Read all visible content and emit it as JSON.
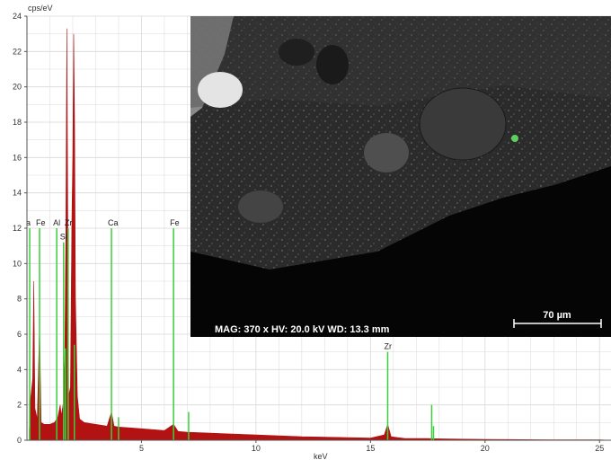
{
  "chart_data": {
    "type": "area",
    "ylabel": "cps/eV",
    "xlabel": "keV",
    "xlim": [
      0,
      25.5
    ],
    "ylim": [
      0,
      24
    ],
    "x_ticks": [
      5,
      10,
      15,
      20,
      25
    ],
    "y_ticks": [
      0,
      2,
      4,
      6,
      8,
      10,
      12,
      14,
      16,
      18,
      20,
      22,
      24
    ],
    "grid": true,
    "colors": {
      "spectrum": "#b31212",
      "markers": "#3ccf3c",
      "grid": "#d9d9d9"
    },
    "series": [
      {
        "points": [
          [
            0.1,
            0.5
          ],
          [
            0.15,
            2.2
          ],
          [
            0.25,
            3.5
          ],
          [
            0.3,
            9.0
          ],
          [
            0.35,
            1.8
          ],
          [
            0.45,
            1.2
          ],
          [
            0.55,
            6.5
          ],
          [
            0.62,
            1.0
          ],
          [
            0.75,
            0.9
          ],
          [
            1.0,
            0.9
          ],
          [
            1.2,
            1.0
          ],
          [
            1.35,
            1.3
          ],
          [
            1.45,
            2.0
          ],
          [
            1.5,
            1.4
          ],
          [
            1.6,
            2.2
          ],
          [
            1.65,
            4.5
          ],
          [
            1.7,
            12.0
          ],
          [
            1.74,
            23.3
          ],
          [
            1.78,
            13.0
          ],
          [
            1.82,
            2.5
          ],
          [
            1.9,
            3.0
          ],
          [
            1.96,
            12.5
          ],
          [
            2.0,
            16.0
          ],
          [
            2.04,
            23.0
          ],
          [
            2.08,
            18.0
          ],
          [
            2.12,
            8.0
          ],
          [
            2.2,
            2.5
          ],
          [
            2.3,
            1.2
          ],
          [
            2.5,
            1.0
          ],
          [
            3.0,
            0.9
          ],
          [
            3.5,
            0.8
          ],
          [
            3.69,
            1.6
          ],
          [
            3.8,
            0.8
          ],
          [
            4.0,
            0.75
          ],
          [
            4.5,
            0.7
          ],
          [
            5.0,
            0.65
          ],
          [
            6.0,
            0.55
          ],
          [
            6.4,
            0.9
          ],
          [
            6.6,
            0.5
          ],
          [
            7.0,
            0.45
          ],
          [
            8.0,
            0.4
          ],
          [
            9.0,
            0.35
          ],
          [
            10.0,
            0.3
          ],
          [
            11.0,
            0.25
          ],
          [
            12.0,
            0.2
          ],
          [
            13.0,
            0.18
          ],
          [
            14.0,
            0.15
          ],
          [
            15.0,
            0.12
          ],
          [
            15.6,
            0.3
          ],
          [
            15.75,
            0.9
          ],
          [
            15.9,
            0.2
          ],
          [
            16.5,
            0.1
          ],
          [
            17.5,
            0.1
          ],
          [
            18.0,
            0.08
          ],
          [
            19.0,
            0.06
          ],
          [
            20.0,
            0.05
          ],
          [
            21.0,
            0.04
          ],
          [
            22.0,
            0.03
          ],
          [
            23.0,
            0.02
          ],
          [
            24.0,
            0.02
          ],
          [
            25.0,
            0.02
          ],
          [
            25.5,
            0.0
          ]
        ]
      }
    ],
    "element_markers": [
      {
        "label": "Fe",
        "x": 0.55,
        "height": 12.0
      },
      {
        "label": "a",
        "x": 0.12,
        "height": 12.0
      },
      {
        "label": "Al",
        "x": 1.3,
        "height": 12.0
      },
      {
        "label": "Si",
        "x": 1.6,
        "height": 11.2
      },
      {
        "label": "Zr",
        "x": 1.8,
        "height": 12.0
      },
      {
        "label": "",
        "x": 1.68,
        "height": 5.2
      },
      {
        "label": "",
        "x": 2.07,
        "height": 5.4
      },
      {
        "label": "Ca",
        "x": 3.69,
        "height": 12.0
      },
      {
        "label": "",
        "x": 4.0,
        "height": 1.3
      },
      {
        "label": "Fe",
        "x": 6.4,
        "height": 12.0
      },
      {
        "label": "",
        "x": 7.06,
        "height": 1.6
      },
      {
        "label": "Zr",
        "x": 15.75,
        "height": 5.0
      },
      {
        "label": "",
        "x": 17.67,
        "height": 2.0
      },
      {
        "label": "",
        "x": 17.75,
        "height": 0.8
      }
    ]
  },
  "sem_image": {
    "info_text": "MAG: 370 x  HV: 20.0 kV  WD: 13.3 mm",
    "scale_bar_label": "70 µm"
  }
}
